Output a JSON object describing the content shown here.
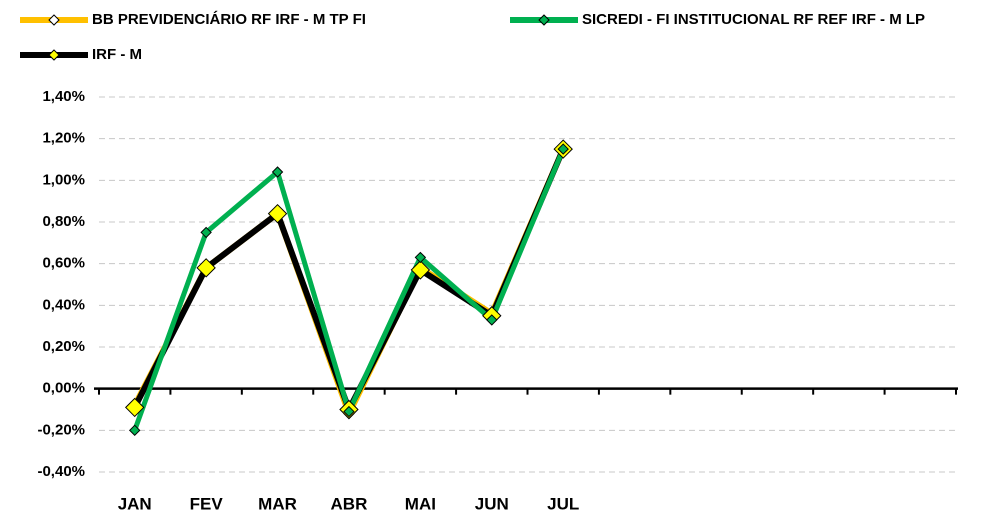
{
  "chart_data": {
    "type": "line",
    "categories": [
      "JAN",
      "FEV",
      "MAR",
      "ABR",
      "MAI",
      "JUN",
      "JUL",
      null,
      null,
      null,
      null,
      null
    ],
    "series": [
      {
        "name": "BB PREVIDENCIÁRIO RF IRF - M TP FI",
        "color": "#ffc000",
        "marker": "#ffffff",
        "values": [
          -0.08,
          0.58,
          0.84,
          -0.12,
          0.58,
          0.36,
          1.15,
          null,
          null,
          null,
          null,
          null
        ]
      },
      {
        "name": "IRF - M",
        "color": "#000000",
        "marker": "#ffff00",
        "values": [
          -0.09,
          0.58,
          0.84,
          -0.1,
          0.57,
          0.35,
          1.15,
          null,
          null,
          null,
          null,
          null
        ]
      },
      {
        "name": "SICREDI - FI INSTITUCIONAL RF REF IRF - M LP",
        "color": "#00b050",
        "marker": "#00b050",
        "values": [
          -0.2,
          0.75,
          1.04,
          -0.11,
          0.63,
          0.33,
          1.15,
          null,
          null,
          null,
          null,
          null
        ]
      }
    ],
    "ylim": [
      -0.4,
      1.4
    ],
    "yticks": [
      {
        "value": -0.4,
        "label": "-0,40%"
      },
      {
        "value": -0.2,
        "label": "-0,20%"
      },
      {
        "value": 0,
        "label": "0,00%"
      },
      {
        "value": 0.2,
        "label": "0,20%"
      },
      {
        "value": 0.4,
        "label": "0,40%"
      },
      {
        "value": 0.6,
        "label": "0,60%"
      },
      {
        "value": 0.8,
        "label": "0,80%"
      },
      {
        "value": 1.0,
        "label": "1,00%"
      },
      {
        "value": 1.2,
        "label": "1,20%"
      },
      {
        "value": 1.4,
        "label": "1,40%"
      }
    ],
    "grid": true
  }
}
